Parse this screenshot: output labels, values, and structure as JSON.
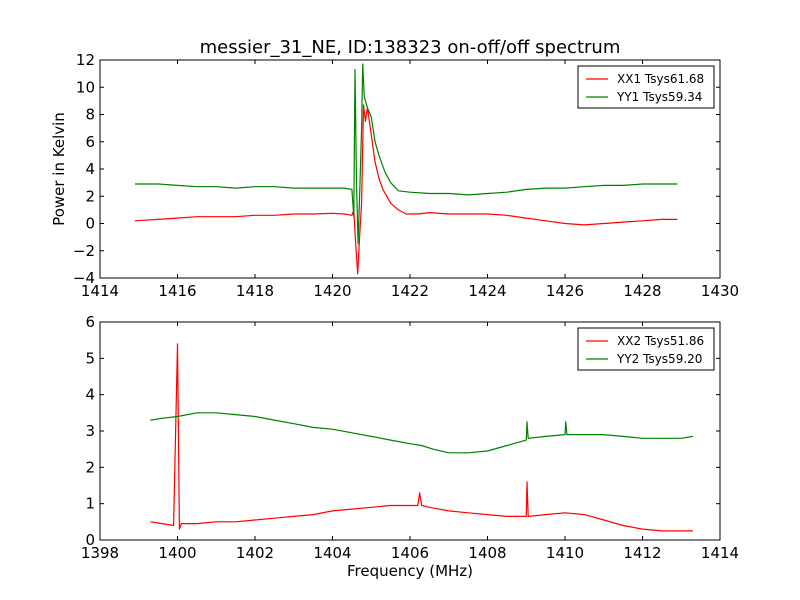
{
  "figure": {
    "title": "messier_31_NE, ID:138323 on-off/off spectrum"
  },
  "chart_data": [
    {
      "type": "line",
      "title": "messier_31_NE, ID:138323 on-off/off spectrum",
      "xlabel": "",
      "ylabel": "Power in Kelvin",
      "xlim": [
        1414,
        1430
      ],
      "ylim": [
        -4,
        12
      ],
      "xticks": [
        1414,
        1416,
        1418,
        1420,
        1422,
        1424,
        1426,
        1428,
        1430
      ],
      "yticks": [
        -4,
        -2,
        0,
        2,
        4,
        6,
        8,
        10,
        12
      ],
      "grid": false,
      "legend_position": "top-right",
      "series": [
        {
          "name": "XX1 Tsys61.68",
          "color": "#ff0000",
          "x": [
            1414.9,
            1415.5,
            1416.0,
            1416.5,
            1417.0,
            1417.5,
            1418.0,
            1418.5,
            1419.0,
            1419.5,
            1420.0,
            1420.3,
            1420.5,
            1420.55,
            1420.6,
            1420.65,
            1420.7,
            1420.75,
            1420.8,
            1420.85,
            1420.9,
            1421.0,
            1421.1,
            1421.2,
            1421.3,
            1421.5,
            1421.7,
            1421.9,
            1422.2,
            1422.5,
            1423.0,
            1423.5,
            1424.0,
            1424.5,
            1425.0,
            1425.5,
            1426.0,
            1426.5,
            1427.0,
            1427.5,
            1428.0,
            1428.5,
            1428.9
          ],
          "y": [
            0.2,
            0.3,
            0.4,
            0.5,
            0.5,
            0.5,
            0.6,
            0.6,
            0.7,
            0.7,
            0.75,
            0.7,
            0.6,
            1.0,
            -1.5,
            -3.7,
            -1.0,
            1.5,
            8.7,
            7.5,
            8.5,
            6.5,
            4.5,
            3.3,
            2.5,
            1.5,
            1.0,
            0.7,
            0.7,
            0.8,
            0.7,
            0.7,
            0.7,
            0.6,
            0.4,
            0.2,
            0.0,
            -0.1,
            0.0,
            0.1,
            0.2,
            0.3,
            0.3
          ]
        },
        {
          "name": "YY1 Tsys59.34",
          "color": "#008000",
          "x": [
            1414.9,
            1415.5,
            1416.0,
            1416.5,
            1417.0,
            1417.5,
            1418.0,
            1418.5,
            1419.0,
            1419.5,
            1420.0,
            1420.3,
            1420.5,
            1420.55,
            1420.58,
            1420.62,
            1420.66,
            1420.7,
            1420.75,
            1420.78,
            1420.82,
            1420.9,
            1421.0,
            1421.1,
            1421.2,
            1421.35,
            1421.5,
            1421.7,
            1422.0,
            1422.5,
            1423.0,
            1423.5,
            1424.0,
            1424.5,
            1425.0,
            1425.5,
            1426.0,
            1426.5,
            1427.0,
            1427.5,
            1428.0,
            1428.5,
            1428.9
          ],
          "y": [
            2.9,
            2.9,
            2.8,
            2.7,
            2.7,
            2.6,
            2.7,
            2.7,
            2.6,
            2.6,
            2.6,
            2.6,
            2.5,
            0.5,
            11.3,
            3.0,
            -1.5,
            2.0,
            7.0,
            11.7,
            9.3,
            8.5,
            7.8,
            6.0,
            5.0,
            3.8,
            3.0,
            2.4,
            2.3,
            2.2,
            2.2,
            2.1,
            2.2,
            2.3,
            2.5,
            2.6,
            2.6,
            2.7,
            2.8,
            2.8,
            2.9,
            2.9,
            2.9
          ]
        }
      ]
    },
    {
      "type": "line",
      "title": "",
      "xlabel": "Frequency (MHz)",
      "ylabel": "",
      "xlim": [
        1398,
        1414
      ],
      "ylim": [
        0,
        6
      ],
      "xticks": [
        1398,
        1400,
        1402,
        1404,
        1406,
        1408,
        1410,
        1412,
        1414
      ],
      "yticks": [
        0,
        1,
        2,
        3,
        4,
        5,
        6
      ],
      "grid": false,
      "legend_position": "top-right",
      "series": [
        {
          "name": "XX2 Tsys51.86",
          "color": "#ff0000",
          "x": [
            1399.3,
            1399.6,
            1399.9,
            1400.0,
            1400.05,
            1400.1,
            1400.5,
            1401.0,
            1401.5,
            1402.0,
            1402.5,
            1403.0,
            1403.5,
            1404.0,
            1404.5,
            1405.0,
            1405.5,
            1406.0,
            1406.2,
            1406.25,
            1406.3,
            1406.5,
            1407.0,
            1407.5,
            1408.0,
            1408.5,
            1409.0,
            1409.02,
            1409.05,
            1409.5,
            1410.0,
            1410.5,
            1411.0,
            1411.5,
            1412.0,
            1412.5,
            1413.0,
            1413.3
          ],
          "y": [
            0.5,
            0.45,
            0.4,
            5.4,
            0.3,
            0.45,
            0.45,
            0.5,
            0.5,
            0.55,
            0.6,
            0.65,
            0.7,
            0.8,
            0.85,
            0.9,
            0.95,
            0.95,
            0.95,
            1.3,
            0.95,
            0.9,
            0.8,
            0.75,
            0.7,
            0.65,
            0.65,
            1.6,
            0.65,
            0.7,
            0.75,
            0.7,
            0.55,
            0.4,
            0.3,
            0.25,
            0.25,
            0.25
          ]
        },
        {
          "name": "YY2 Tsys59.20",
          "color": "#008000",
          "x": [
            1399.3,
            1399.6,
            1400.0,
            1400.5,
            1401.0,
            1401.5,
            1402.0,
            1402.5,
            1403.0,
            1403.5,
            1404.0,
            1404.5,
            1405.0,
            1405.5,
            1406.0,
            1406.3,
            1406.6,
            1407.0,
            1407.5,
            1408.0,
            1408.5,
            1409.0,
            1409.02,
            1409.05,
            1409.5,
            1410.0,
            1410.02,
            1410.05,
            1410.5,
            1411.0,
            1411.5,
            1412.0,
            1412.5,
            1413.0,
            1413.3
          ],
          "y": [
            3.3,
            3.35,
            3.4,
            3.5,
            3.5,
            3.45,
            3.4,
            3.3,
            3.2,
            3.1,
            3.05,
            2.95,
            2.85,
            2.75,
            2.65,
            2.6,
            2.5,
            2.4,
            2.4,
            2.45,
            2.6,
            2.75,
            3.25,
            2.8,
            2.85,
            2.9,
            3.25,
            2.9,
            2.9,
            2.9,
            2.85,
            2.8,
            2.8,
            2.8,
            2.85
          ]
        }
      ]
    }
  ]
}
